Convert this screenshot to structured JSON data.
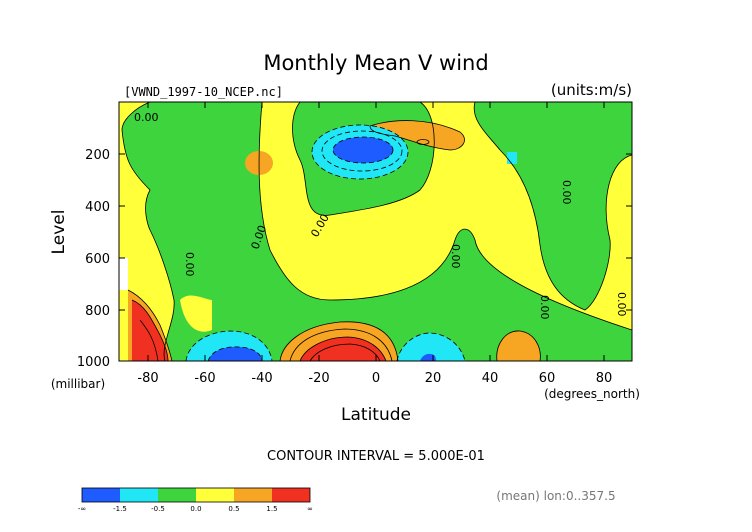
{
  "chart_data": {
    "type": "heatmap",
    "title": "Monthly Mean V wind",
    "file_label": "[VWND_1997-10_NCEP.nc]",
    "units_label": "(units:m/s)",
    "xlabel": "Latitude",
    "x_unit": "(degrees_north)",
    "ylabel": "Level",
    "y_unit": "(millibar)",
    "contour_interval": "CONTOUR INTERVAL = 5.000E-01",
    "footnote": "(mean) lon:0..357.5",
    "xlim": [
      -90,
      90
    ],
    "ylim": [
      1000,
      10
    ],
    "x_ticks": [
      "-80",
      "-60",
      "-40",
      "-20",
      "0",
      "20",
      "40",
      "60",
      "80"
    ],
    "y_ticks": [
      "200",
      "400",
      "600",
      "800",
      "1000"
    ],
    "contour_labels": [
      "0.00",
      "0.00",
      "0.00",
      "0.00",
      "0.00",
      "0.00",
      "0.00",
      "0.00",
      "0.00"
    ],
    "legend": {
      "colors": [
        "#1f5cff",
        "#20e6f5",
        "#3ed43e",
        "#ffff3a",
        "#f6a623",
        "#f03020"
      ],
      "labels": [
        "-∞",
        "-1.5",
        "-0.5",
        "0.0",
        "0.5",
        "1.5",
        "∞"
      ]
    },
    "features": [
      {
        "kind": "min",
        "lat": -5,
        "level": 190,
        "value_range": "< -1.5"
      },
      {
        "kind": "min",
        "lat": -50,
        "level": 980,
        "value_range": "< -1.5"
      },
      {
        "kind": "min",
        "lat": 20,
        "level": 990,
        "value_range": "< -1.5"
      },
      {
        "kind": "max",
        "lat": -10,
        "level": 980,
        "value_range": "> 1.5"
      },
      {
        "kind": "max",
        "lat": -85,
        "level": 900,
        "value_range": "> 1.5"
      },
      {
        "kind": "max",
        "lat": 10,
        "level": 110,
        "value_range": "0.5 to 1.5"
      },
      {
        "kind": "max",
        "lat": -38,
        "level": 190,
        "value_range": "0.5 to 1.5"
      },
      {
        "kind": "max",
        "lat": 55,
        "level": 930,
        "value_range": "0.5 to 1.5"
      }
    ]
  }
}
